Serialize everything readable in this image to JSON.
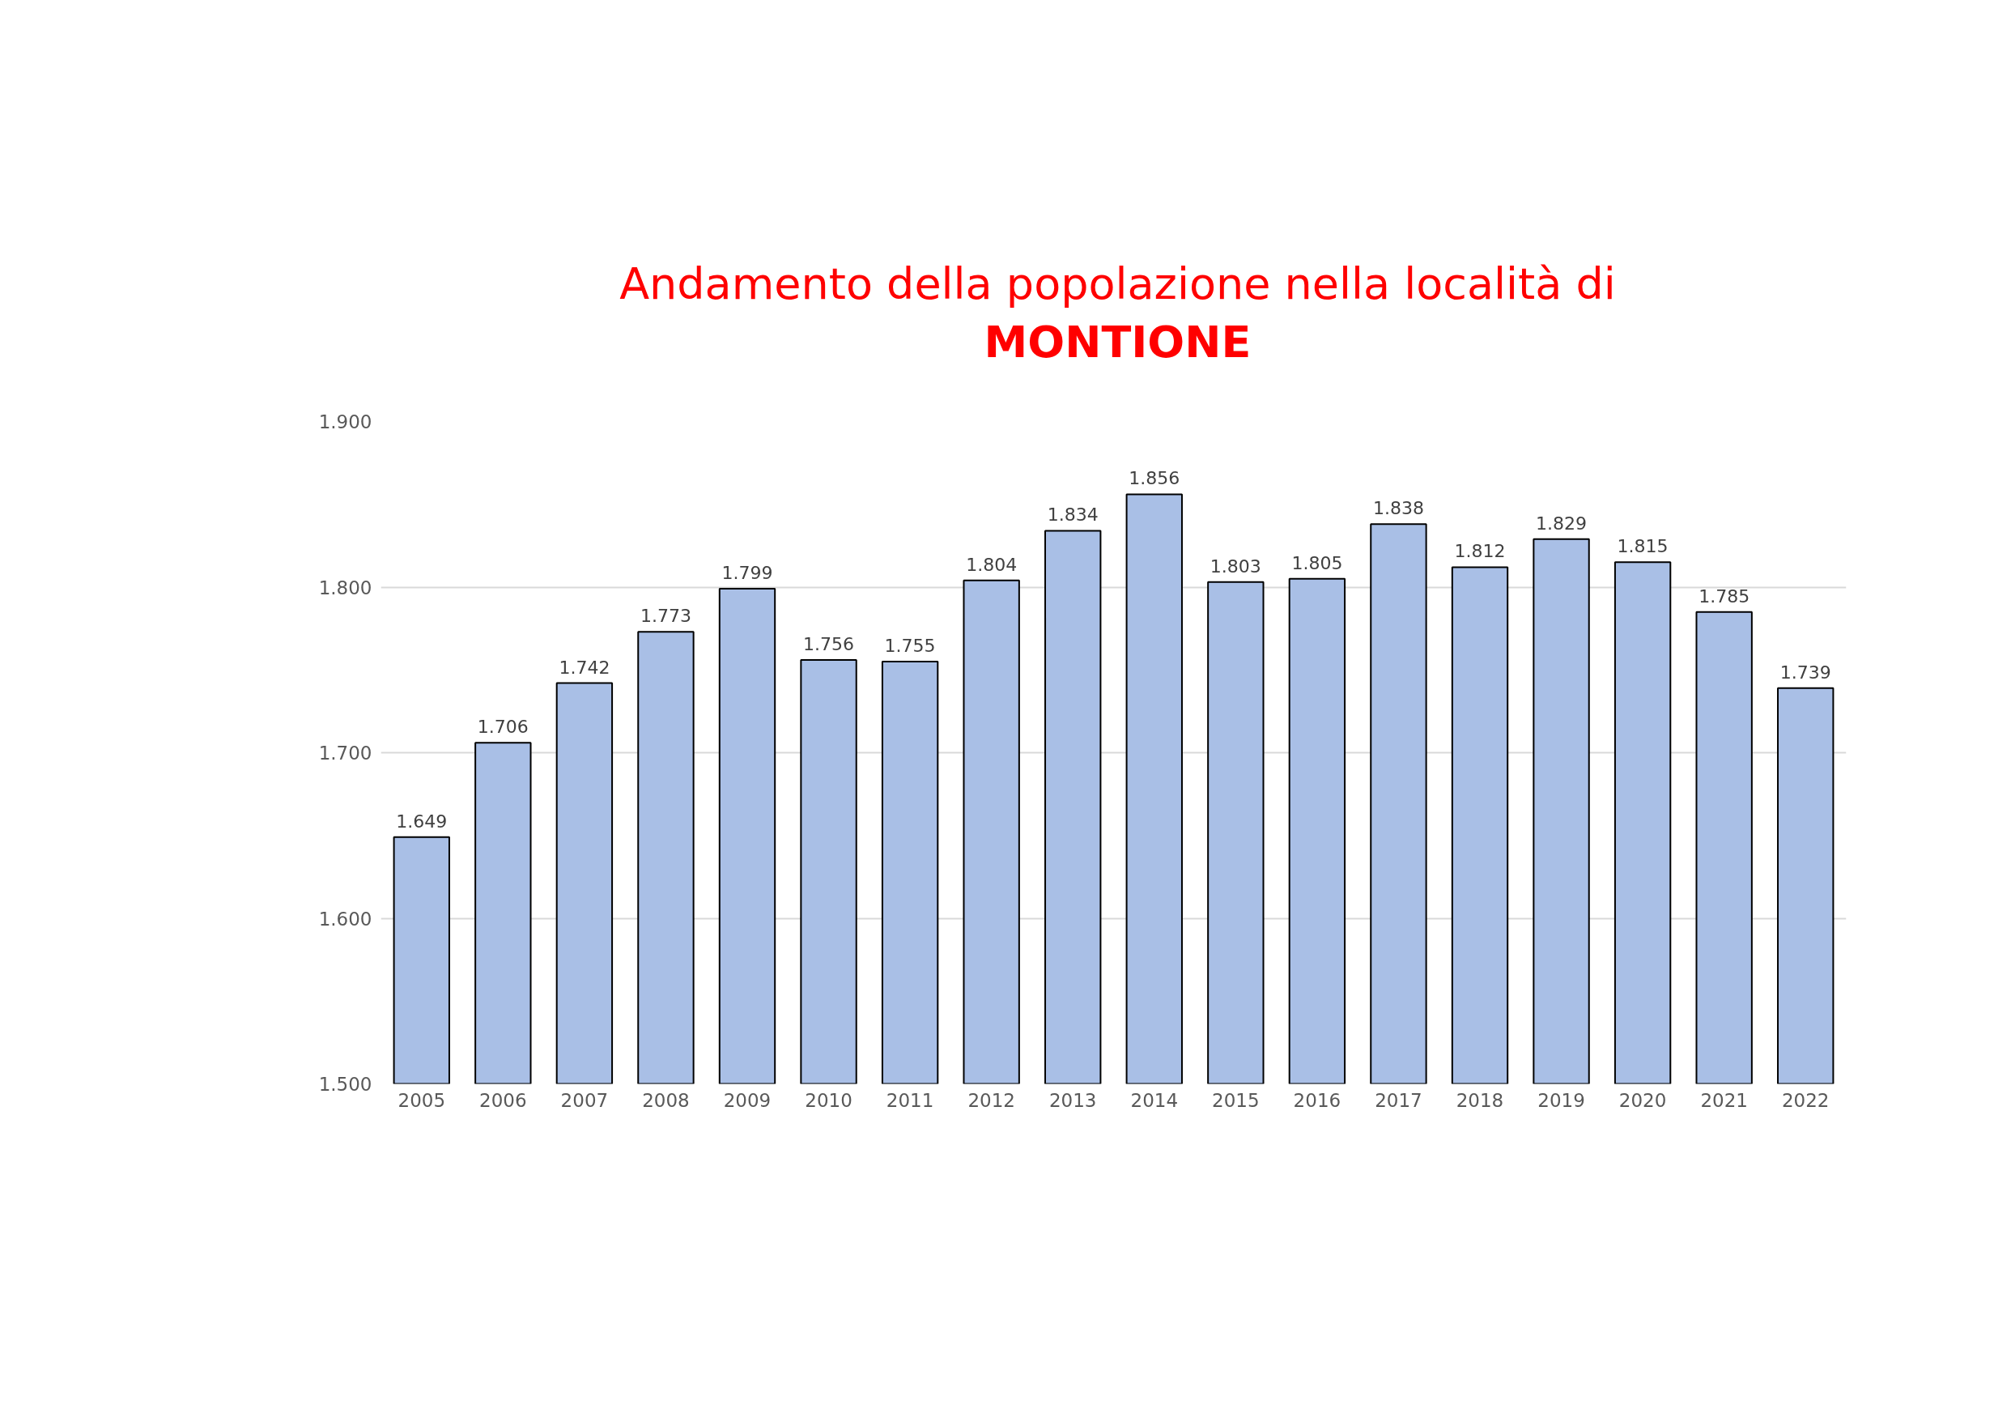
{
  "chart_data": {
    "type": "bar",
    "title": "Andamento della popolazione nella località di\nMONTIONE",
    "categories": [
      "2005",
      "2006",
      "2007",
      "2008",
      "2009",
      "2010",
      "2011",
      "2012",
      "2013",
      "2014",
      "2015",
      "2016",
      "2017",
      "2018",
      "2019",
      "2020",
      "2021",
      "2022"
    ],
    "values": [
      1649,
      1706,
      1742,
      1773,
      1799,
      1756,
      1755,
      1804,
      1834,
      1856,
      1803,
      1805,
      1838,
      1812,
      1829,
      1815,
      1785,
      1739
    ],
    "value_labels": [
      "1.649",
      "1.706",
      "1.742",
      "1.773",
      "1.799",
      "1.756",
      "1.755",
      "1.804",
      "1.834",
      "1.856",
      "1.803",
      "1.805",
      "1.838",
      "1.812",
      "1.829",
      "1.815",
      "1.785",
      "1.739"
    ],
    "color": "#a9bfe6",
    "ylim": [
      1500,
      1900
    ],
    "yticks": [
      {
        "value": 1500,
        "label": "1.500"
      },
      {
        "value": 1600,
        "label": "1.600"
      },
      {
        "value": 1700,
        "label": "1.700"
      },
      {
        "value": 1800,
        "label": "1.800"
      },
      {
        "value": 1900,
        "label": "1.900"
      }
    ],
    "grid": "y"
  }
}
